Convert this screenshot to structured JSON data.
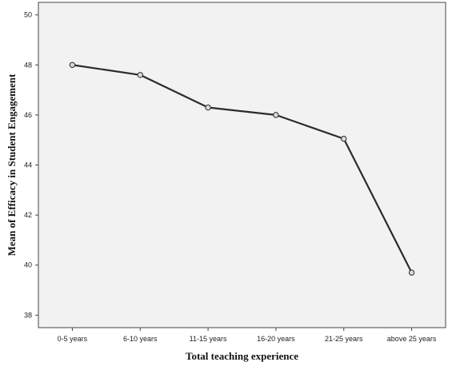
{
  "chart_data": {
    "type": "line",
    "xlabel": "Total teaching experience",
    "ylabel": "Mean of Efficacy in Student Engagement",
    "categories": [
      "0-5 years",
      "6-10 years",
      "11-15 years",
      "16-20 years",
      "21-25 years",
      "above 25 years"
    ],
    "series": [
      {
        "values": [
          48.0,
          47.6,
          46.3,
          46.0,
          45.05,
          39.7
        ]
      }
    ],
    "ylim": [
      37.5,
      50.5
    ],
    "yticks": [
      38,
      40,
      42,
      44,
      46,
      48,
      50
    ],
    "grid": false,
    "legend": "none",
    "colors": {
      "plot_background": "#f2f2f2",
      "line": "#2b2b2b",
      "marker_fill": "#d9d9d9",
      "axis": "#444444"
    }
  }
}
